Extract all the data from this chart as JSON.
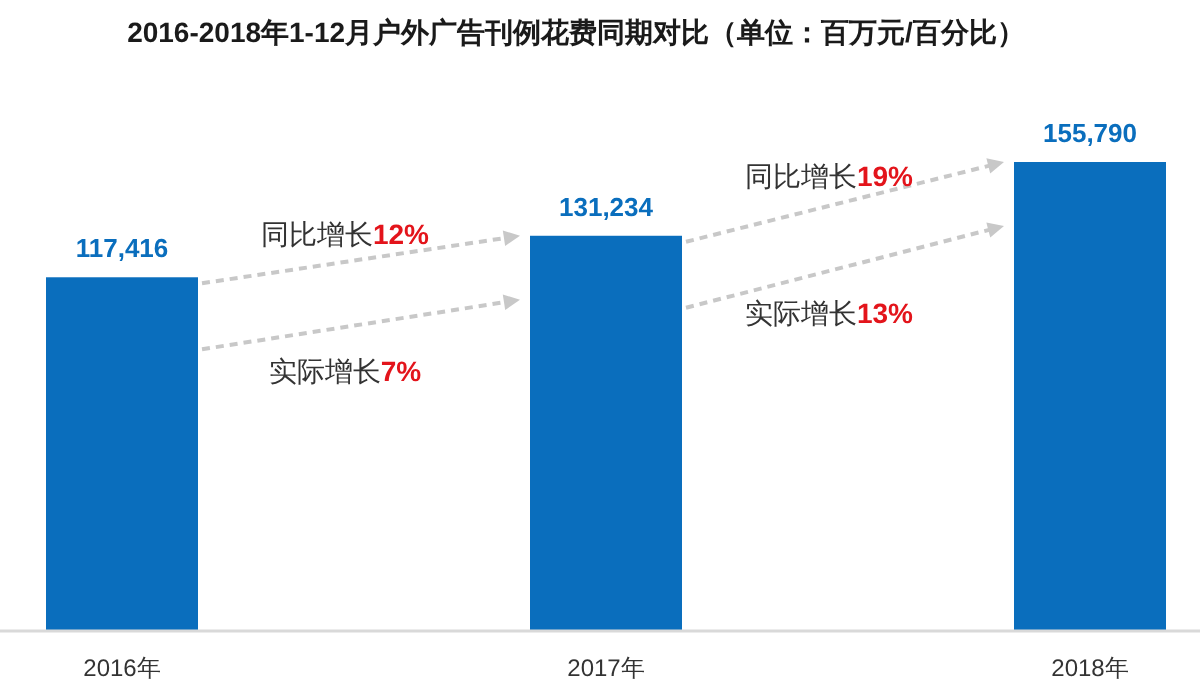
{
  "chart_data": {
    "type": "bar",
    "title": "2016-2018年1-12月户外广告刊例花费同期对比（单位：百万元/百分比）",
    "categories": [
      "2016年",
      "2017年",
      "2018年"
    ],
    "values": [
      117416,
      131234,
      155790
    ],
    "color": "#0a6ebd",
    "data_labels": true,
    "value_labels": [
      "117,416",
      "131,234",
      "155,790"
    ],
    "annotations": [
      "同比增长12%",
      "实际增长7%",
      "同比增长19%",
      "实际增长13%"
    ]
  }
}
